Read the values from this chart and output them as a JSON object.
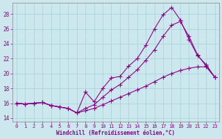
{
  "xlabel": "Windchill (Refroidissement éolien,°C)",
  "bg_color": "#cce8ee",
  "grid_color": "#aad4dc",
  "line_color": "#880088",
  "xlim_min": -0.5,
  "xlim_max": 23.5,
  "ylim_min": 13.5,
  "ylim_max": 29.5,
  "xticks": [
    0,
    1,
    2,
    3,
    4,
    5,
    6,
    7,
    8,
    9,
    10,
    11,
    12,
    13,
    14,
    15,
    16,
    17,
    18,
    19,
    20,
    21,
    22,
    23
  ],
  "yticks": [
    14,
    16,
    18,
    20,
    22,
    24,
    26,
    28
  ],
  "s1_x": [
    0,
    1,
    2,
    3,
    4,
    5,
    6,
    7,
    8,
    9,
    10,
    11,
    12,
    13,
    14,
    15,
    16,
    17,
    18,
    19,
    20,
    21,
    22,
    23
  ],
  "s1_y": [
    16.0,
    15.9,
    16.0,
    16.1,
    15.7,
    15.5,
    15.3,
    14.7,
    17.5,
    16.2,
    18.0,
    19.4,
    19.6,
    21.0,
    22.0,
    23.8,
    26.0,
    27.9,
    28.9,
    27.2,
    24.6,
    22.4,
    21.2,
    19.5
  ],
  "s2_x": [
    0,
    1,
    2,
    3,
    4,
    5,
    6,
    7,
    8,
    9,
    10,
    11,
    12,
    13,
    14,
    15,
    16,
    17,
    18,
    19,
    20,
    21,
    22,
    23
  ],
  "s2_y": [
    16.0,
    15.9,
    16.0,
    16.1,
    15.7,
    15.5,
    15.3,
    14.7,
    15.3,
    15.8,
    16.8,
    17.8,
    18.5,
    19.5,
    20.5,
    21.8,
    23.2,
    25.0,
    26.5,
    27.0,
    25.0,
    22.5,
    21.0,
    19.5
  ],
  "s3_x": [
    0,
    1,
    2,
    3,
    4,
    5,
    6,
    7,
    8,
    9,
    10,
    11,
    12,
    13,
    14,
    15,
    16,
    17,
    18,
    19,
    20,
    21,
    22,
    23
  ],
  "s3_y": [
    16.0,
    15.9,
    16.0,
    16.1,
    15.7,
    15.5,
    15.3,
    14.7,
    15.0,
    15.3,
    15.8,
    16.3,
    16.8,
    17.3,
    17.8,
    18.3,
    18.9,
    19.5,
    20.0,
    20.4,
    20.7,
    20.9,
    20.9,
    19.5
  ]
}
